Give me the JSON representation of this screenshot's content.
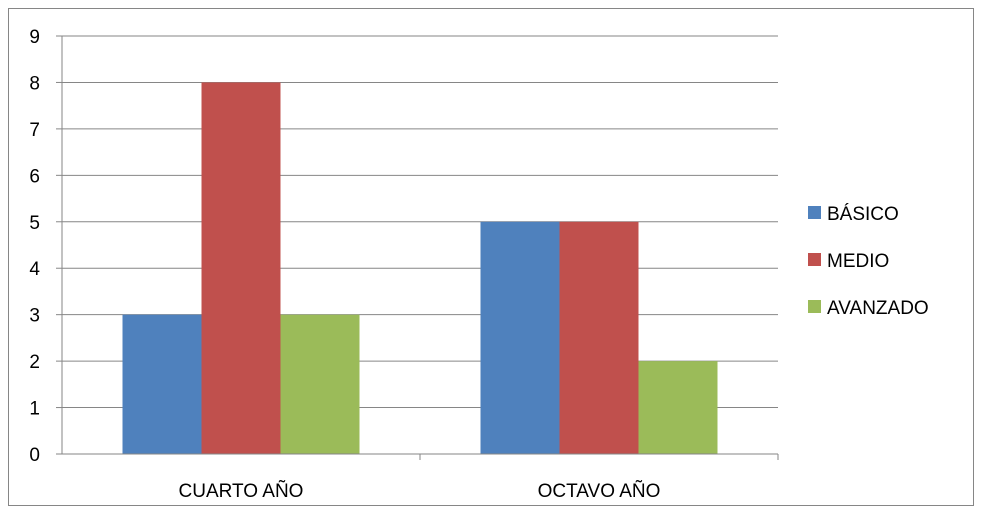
{
  "chart_data": {
    "type": "bar",
    "title": "",
    "xlabel": "",
    "ylabel": "",
    "categories": [
      "CUARTO AÑO",
      "OCTAVO AÑO"
    ],
    "series": [
      {
        "name": "BÁSICO",
        "values": [
          3,
          5
        ],
        "color": "#4F81BD"
      },
      {
        "name": "MEDIO",
        "values": [
          8,
          5
        ],
        "color": "#C0504D"
      },
      {
        "name": "AVANZADO",
        "values": [
          3,
          2
        ],
        "color": "#9BBB59"
      }
    ],
    "ylim": [
      0,
      9
    ],
    "yticks": [
      "0",
      "1",
      "2",
      "3",
      "4",
      "5",
      "6",
      "7",
      "8",
      "9"
    ],
    "grid": true,
    "legend_position": "right"
  }
}
